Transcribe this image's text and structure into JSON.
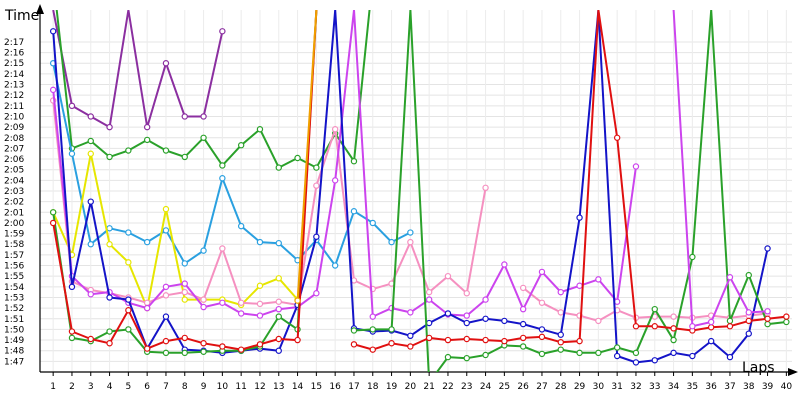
{
  "chart_data": {
    "type": "line",
    "title": "",
    "xlabel": "Laps",
    "ylabel": "Time",
    "x": [
      1,
      2,
      3,
      4,
      5,
      6,
      7,
      8,
      9,
      10,
      11,
      12,
      13,
      14,
      15,
      16,
      17,
      18,
      19,
      20,
      21,
      22,
      23,
      24,
      25,
      26,
      27,
      28,
      29,
      30,
      31,
      32,
      33,
      34,
      35,
      36,
      37,
      38,
      39,
      40
    ],
    "x_tick_labels": [
      "1",
      "2",
      "3",
      "4",
      "5",
      "6",
      "7",
      "8",
      "9",
      "10",
      "11",
      "12",
      "13",
      "14",
      "15",
      "16",
      "17",
      "18",
      "19",
      "20",
      "21",
      "22",
      "23",
      "24",
      "25",
      "26",
      "27",
      "28",
      "29",
      "30",
      "31",
      "32",
      "33",
      "34",
      "35",
      "36",
      "37",
      "38",
      "39",
      "40"
    ],
    "y_tick_labels": [
      "1:47",
      "1:48",
      "1:49",
      "1:50",
      "1:51",
      "1:52",
      "1:53",
      "1:54",
      "1:55",
      "1:56",
      "1:57",
      "1:58",
      "1:59",
      "2:00",
      "2:01",
      "2:02",
      "2:03",
      "2:04",
      "2:05",
      "2:06",
      "2:07",
      "2:08",
      "2:09",
      "2:10",
      "2:11",
      "2:12",
      "2:13",
      "2:14",
      "2:15",
      "2:16",
      "2:17"
    ],
    "y_unit": "seconds",
    "ylim": [
      106,
      139
    ],
    "xlim": [
      0.3,
      40.3
    ],
    "grid": true,
    "legend": "none",
    "series": [
      {
        "color": "#8b2fa0",
        "values": [
          140,
          131,
          130,
          129,
          140,
          129,
          135,
          130,
          130,
          138,
          null,
          null,
          null,
          null,
          null,
          null,
          null,
          null,
          null,
          null,
          null,
          null,
          null,
          null,
          null,
          null,
          null,
          null,
          null,
          null,
          null,
          null,
          null,
          null,
          null,
          null,
          null,
          null,
          null,
          null
        ]
      },
      {
        "color": "#2aa12a",
        "values": [
          143,
          127,
          127.7,
          126.2,
          126.8,
          127.8,
          126.8,
          126.2,
          128,
          125.4,
          127.3,
          128.8,
          125.2,
          126.1,
          125.2,
          128.4,
          125.8,
          143,
          null,
          null,
          null,
          null,
          null,
          null,
          null,
          null,
          null,
          null,
          null,
          null,
          null,
          null,
          null,
          null,
          null,
          null,
          null,
          null,
          null,
          null
        ]
      },
      {
        "color": "#2aa0e0",
        "values": [
          135,
          126.5,
          118,
          119.5,
          119.1,
          118.2,
          119.3,
          116.2,
          117.4,
          124.2,
          119.7,
          118.2,
          118.1,
          116.5,
          118.4,
          116.0,
          121.1,
          120.0,
          118.2,
          119.1,
          null,
          null,
          null,
          null,
          null,
          null,
          null,
          null,
          null,
          null,
          null,
          null,
          null,
          null,
          null,
          null,
          null,
          null,
          null,
          null
        ]
      },
      {
        "color": "#e6e600",
        "values": [
          121,
          117,
          126.5,
          118,
          116.3,
          112,
          121.3,
          112.8,
          112.8,
          112.8,
          112.3,
          114.1,
          114.8,
          112.8,
          null,
          null,
          null,
          null,
          null,
          null,
          null,
          null,
          null,
          null,
          null,
          null,
          null,
          null,
          null,
          null,
          null,
          null,
          null,
          null,
          null,
          null,
          null,
          null,
          null,
          null
        ]
      },
      {
        "color": "#f590c0",
        "values": [
          131.5,
          114.5,
          113.7,
          113.4,
          113,
          112.5,
          113.2,
          113.5,
          112.8,
          117.6,
          112.5,
          112.4,
          112.6,
          112.3,
          123.5,
          128.8,
          114.6,
          113.8,
          114.3,
          118.2,
          113.5,
          115.0,
          113.4,
          123.3,
          null,
          113.9,
          112.5,
          111.6,
          111.3,
          110.8,
          111.8,
          111.1,
          111.2,
          111.2,
          111.1,
          111.3,
          111.1,
          111.3,
          111.5,
          null
        ]
      },
      {
        "color": "#cc44ee",
        "values": [
          132.5,
          115,
          113.3,
          113.5,
          112.5,
          112,
          114,
          114.3,
          112.1,
          112.5,
          111.5,
          111.3,
          111.9,
          112.1,
          113.4,
          124,
          140,
          111.2,
          112,
          111.6,
          112.8,
          111.4,
          111.3,
          112.8,
          116.1,
          111.9,
          115.4,
          113.5,
          114.1,
          114.7,
          112.6,
          125.3,
          null,
          null,
          null,
          null,
          null,
          null,
          null,
          null
        ]
      },
      {
        "color": "#1414c8",
        "values": [
          138,
          114,
          122,
          113,
          112.8,
          108.2,
          111.2,
          108.1,
          108.0,
          107.8,
          108.0,
          108.2,
          108.0,
          112.3,
          118.7,
          140,
          110.1,
          109.8,
          109.9,
          109.4,
          110.6,
          111.5,
          110.6,
          111.0,
          110.8,
          110.5,
          110.0,
          109.5,
          120.5,
          140,
          107.5,
          106.9,
          107.1,
          107.8,
          107.5,
          108.9,
          107.4,
          109.6,
          117.6,
          null
        ]
      },
      {
        "color": "#2aa12a",
        "values": [
          121,
          109.2,
          108.9,
          109.8,
          110.0,
          107.9,
          107.8,
          107.8,
          107.9,
          108.0,
          108.0,
          108.4,
          111.2,
          110.0,
          140,
          null,
          109.9,
          110.0,
          110.0,
          140,
          105.0,
          107.4,
          107.3,
          107.6,
          108.5,
          108.4,
          107.7,
          108.1,
          107.8,
          107.8,
          108.3,
          107.8,
          111.9,
          109.0,
          116.8,
          140,
          110.8,
          115.1,
          110.5,
          110.7
        ]
      },
      {
        "color": "#e01010",
        "values": [
          120,
          109.8,
          109.1,
          108.7,
          111.8,
          108.2,
          108.9,
          109.2,
          108.7,
          108.4,
          108.1,
          108.6,
          109.1,
          109.0,
          140,
          null,
          108.6,
          108.1,
          108.7,
          108.4,
          109.2,
          109.0,
          109.1,
          109.0,
          108.9,
          109.2,
          109.3,
          108.8,
          108.9,
          140,
          128,
          110.3,
          110.3,
          110.1,
          109.9,
          110.2,
          110.3,
          110.8,
          111.0,
          111.2
        ]
      },
      {
        "color": "#f0a000",
        "values": [
          null,
          null,
          null,
          null,
          null,
          null,
          null,
          null,
          null,
          null,
          null,
          null,
          null,
          112.7,
          140,
          null,
          null,
          null,
          null,
          null,
          null,
          null,
          null,
          null,
          null,
          null,
          null,
          null,
          null,
          null,
          null,
          null,
          null,
          null,
          null,
          null,
          null,
          null,
          null,
          null
        ]
      },
      {
        "color": "#cc44ee",
        "values": [
          null,
          null,
          null,
          null,
          null,
          null,
          null,
          null,
          null,
          null,
          null,
          null,
          null,
          null,
          null,
          null,
          null,
          null,
          null,
          null,
          null,
          null,
          null,
          null,
          null,
          null,
          null,
          null,
          null,
          null,
          null,
          null,
          null,
          140,
          110.3,
          110.7,
          114.9,
          111.6,
          111.7,
          null
        ]
      }
    ]
  }
}
